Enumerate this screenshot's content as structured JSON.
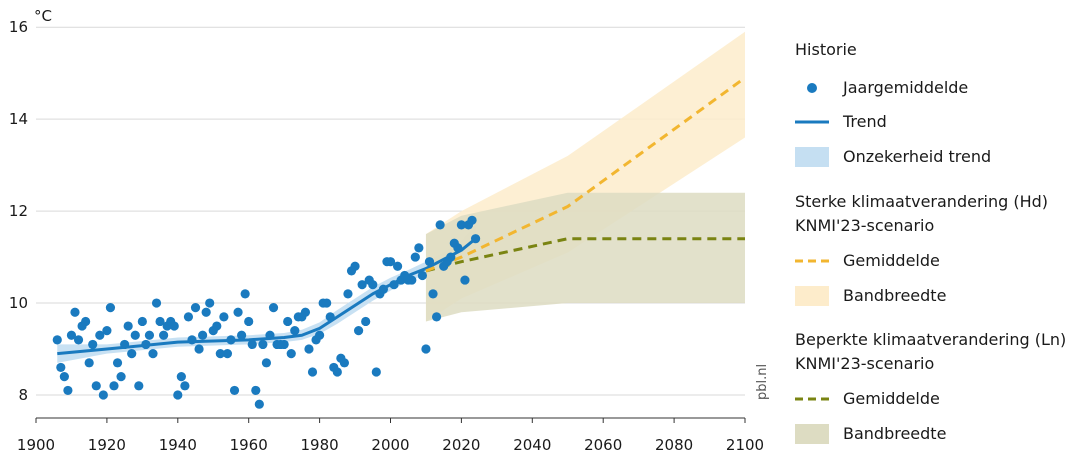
{
  "chart_data": {
    "type": "line",
    "unit_label": "°C",
    "source_label": "pbl.nl",
    "xlim": [
      1900,
      2100
    ],
    "ylim": [
      7.5,
      16.2
    ],
    "x_ticks": [
      1900,
      1920,
      1940,
      1960,
      1980,
      2000,
      2020,
      2040,
      2060,
      2080,
      2100
    ],
    "y_ticks": [
      8,
      10,
      12,
      14,
      16
    ],
    "grid": "horizontal",
    "legend_position": "right",
    "colors": {
      "history": "#1a7abf",
      "history_band": "#c5dff2",
      "hd": "#f2b630",
      "hd_band": "#fdeccb",
      "ln": "#7a8412",
      "ln_band": "#dddcc2"
    },
    "legend": {
      "history_title": "Historie",
      "points_label": "Jaargemiddelde",
      "trend_label": "Trend",
      "trend_band_label": "Onzekerheid trend",
      "hd_title": "Sterke klimaatverandering (Hd)",
      "hd_subtitle": "KNMI'23-scenario",
      "hd_mean_label": "Gemiddelde",
      "hd_band_label": "Bandbreedte",
      "ln_title": "Beperkte klimaatverandering (Ln)",
      "ln_subtitle": "KNMI'23-scenario",
      "ln_mean_label": "Gemiddelde",
      "ln_band_label": "Bandbreedte"
    },
    "series": [
      {
        "name": "Jaargemiddelde",
        "kind": "scatter",
        "x": [
          1906,
          1907,
          1908,
          1909,
          1910,
          1911,
          1912,
          1913,
          1914,
          1915,
          1916,
          1917,
          1918,
          1919,
          1920,
          1921,
          1922,
          1923,
          1924,
          1925,
          1926,
          1927,
          1928,
          1929,
          1930,
          1931,
          1932,
          1933,
          1934,
          1935,
          1936,
          1937,
          1938,
          1939,
          1940,
          1941,
          1942,
          1943,
          1944,
          1945,
          1946,
          1947,
          1948,
          1949,
          1950,
          1951,
          1952,
          1953,
          1954,
          1955,
          1956,
          1957,
          1958,
          1959,
          1960,
          1961,
          1962,
          1963,
          1964,
          1965,
          1966,
          1967,
          1968,
          1969,
          1970,
          1971,
          1972,
          1973,
          1974,
          1975,
          1976,
          1977,
          1978,
          1979,
          1980,
          1981,
          1982,
          1983,
          1984,
          1985,
          1986,
          1987,
          1988,
          1989,
          1990,
          1991,
          1992,
          1993,
          1994,
          1995,
          1996,
          1997,
          1998,
          1999,
          2000,
          2001,
          2002,
          2003,
          2004,
          2005,
          2006,
          2007,
          2008,
          2009,
          2010,
          2011,
          2012,
          2013,
          2014,
          2015,
          2016,
          2017,
          2018,
          2019,
          2020,
          2021,
          2022,
          2023,
          2024
        ],
        "y": [
          9.2,
          8.6,
          8.4,
          8.1,
          9.3,
          9.8,
          9.2,
          9.5,
          9.6,
          8.7,
          9.1,
          8.2,
          9.3,
          8.0,
          9.4,
          9.9,
          8.2,
          8.7,
          8.4,
          9.1,
          9.5,
          8.9,
          9.3,
          8.2,
          9.6,
          9.1,
          9.3,
          8.9,
          10.0,
          9.6,
          9.3,
          9.5,
          9.6,
          9.5,
          8.0,
          8.4,
          8.2,
          9.7,
          9.2,
          9.9,
          9.0,
          9.3,
          9.8,
          10.0,
          9.4,
          9.5,
          8.9,
          9.7,
          8.9,
          9.2,
          8.1,
          9.8,
          9.3,
          10.2,
          9.6,
          9.1,
          8.1,
          7.8,
          9.1,
          8.7,
          9.3,
          9.9,
          9.1,
          9.1,
          9.1,
          9.6,
          8.9,
          9.4,
          9.7,
          9.7,
          9.8,
          9.0,
          8.5,
          9.2,
          9.3,
          10.0,
          10.0,
          9.7,
          8.6,
          8.5,
          8.8,
          8.7,
          10.2,
          10.7,
          10.8,
          9.4,
          10.4,
          9.6,
          10.5,
          10.4,
          8.5,
          10.2,
          10.3,
          10.9,
          10.9,
          10.4,
          10.8,
          10.5,
          10.6,
          10.5,
          10.5,
          11.0,
          11.2,
          10.6,
          9.0,
          10.9,
          10.2,
          9.7,
          11.7,
          10.8,
          10.9,
          11.0,
          11.3,
          11.2,
          11.7,
          10.5,
          11.7,
          11.8,
          11.4
        ]
      },
      {
        "name": "Trend",
        "kind": "line",
        "x": [
          1906,
          1920,
          1940,
          1960,
          1970,
          1975,
          1980,
          1985,
          1990,
          1995,
          2000,
          2005,
          2010,
          2015,
          2020,
          2024
        ],
        "y": [
          8.9,
          9.0,
          9.15,
          9.2,
          9.25,
          9.3,
          9.45,
          9.7,
          9.95,
          10.2,
          10.4,
          10.6,
          10.75,
          10.95,
          11.15,
          11.4
        ]
      },
      {
        "name": "Onzekerheid trend",
        "kind": "band",
        "x": [
          1906,
          1920,
          1940,
          1960,
          1970,
          1975,
          1980,
          1985,
          1990,
          1995,
          2000,
          2005,
          2010,
          2015,
          2020,
          2024
        ],
        "lower": [
          8.7,
          8.9,
          9.05,
          9.1,
          9.15,
          9.2,
          9.33,
          9.55,
          9.8,
          10.05,
          10.27,
          10.48,
          10.62,
          10.8,
          10.95,
          11.1
        ],
        "upper": [
          9.1,
          9.1,
          9.25,
          9.3,
          9.35,
          9.42,
          9.58,
          9.85,
          10.1,
          10.35,
          10.55,
          10.72,
          10.9,
          11.1,
          11.35,
          11.7
        ]
      },
      {
        "name": "Bandbreedte (Hd)",
        "kind": "band",
        "x": [
          2010,
          2020,
          2050,
          2100
        ],
        "lower": [
          9.6,
          10.1,
          11.1,
          13.6
        ],
        "upper": [
          11.5,
          12.0,
          13.2,
          15.9
        ]
      },
      {
        "name": "Bandbreedte (Ln)",
        "kind": "band",
        "x": [
          2010,
          2020,
          2050,
          2100
        ],
        "lower": [
          9.6,
          9.8,
          10.0,
          10.0
        ],
        "upper": [
          11.5,
          11.9,
          12.4,
          12.4
        ]
      },
      {
        "name": "Gemiddelde (Ln)",
        "kind": "dashed-line",
        "x": [
          2010,
          2020,
          2050,
          2100
        ],
        "y": [
          10.7,
          10.9,
          11.4,
          11.4
        ]
      },
      {
        "name": "Gemiddelde (Hd)",
        "kind": "dashed-line",
        "x": [
          2010,
          2020,
          2050,
          2100
        ],
        "y": [
          10.7,
          11.0,
          12.1,
          14.9
        ]
      }
    ]
  }
}
